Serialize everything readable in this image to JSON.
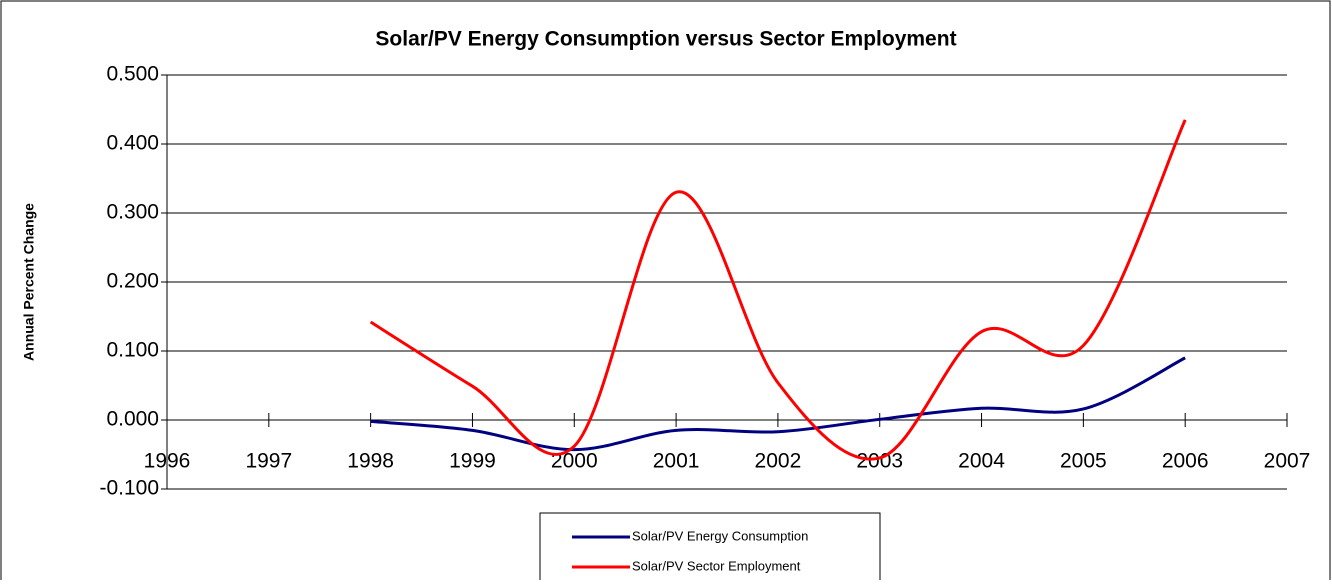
{
  "chart_data": {
    "type": "line",
    "title": "Solar/PV Energy Consumption versus Sector Employment",
    "y_label": "Annual Percent Change",
    "x": [
      1998,
      1999,
      2000,
      2001,
      2002,
      2003,
      2004,
      2005,
      2006
    ],
    "series": [
      {
        "name": "Solar/PV Energy Consumption",
        "color": "#000080",
        "values": [
          -0.002,
          -0.015,
          -0.043,
          -0.015,
          -0.017,
          0.001,
          0.017,
          0.016,
          0.09
        ]
      },
      {
        "name": "Solar/PV Sector Employment",
        "color": "#ff0000",
        "values": [
          0.142,
          0.049,
          -0.038,
          0.33,
          0.054,
          -0.055,
          0.128,
          0.108,
          0.435
        ]
      }
    ],
    "xlim": [
      1996,
      2007
    ],
    "xticks": [
      1996,
      1997,
      1998,
      1999,
      2000,
      2001,
      2002,
      2003,
      2004,
      2005,
      2006,
      2007
    ],
    "ylim": [
      -0.1,
      0.5
    ],
    "yticks": [
      {
        "value": -0.1,
        "label": "-0.100"
      },
      {
        "value": 0,
        "label": "0.000"
      },
      {
        "value": 0.1,
        "label": "0.100"
      },
      {
        "value": 0.2,
        "label": "0.200"
      },
      {
        "value": 0.3,
        "label": "0.300"
      },
      {
        "value": 0.4,
        "label": "0.400"
      },
      {
        "value": 0.5,
        "label": "0.500"
      }
    ],
    "grid": true,
    "smooth": true,
    "legend": "bottom"
  }
}
